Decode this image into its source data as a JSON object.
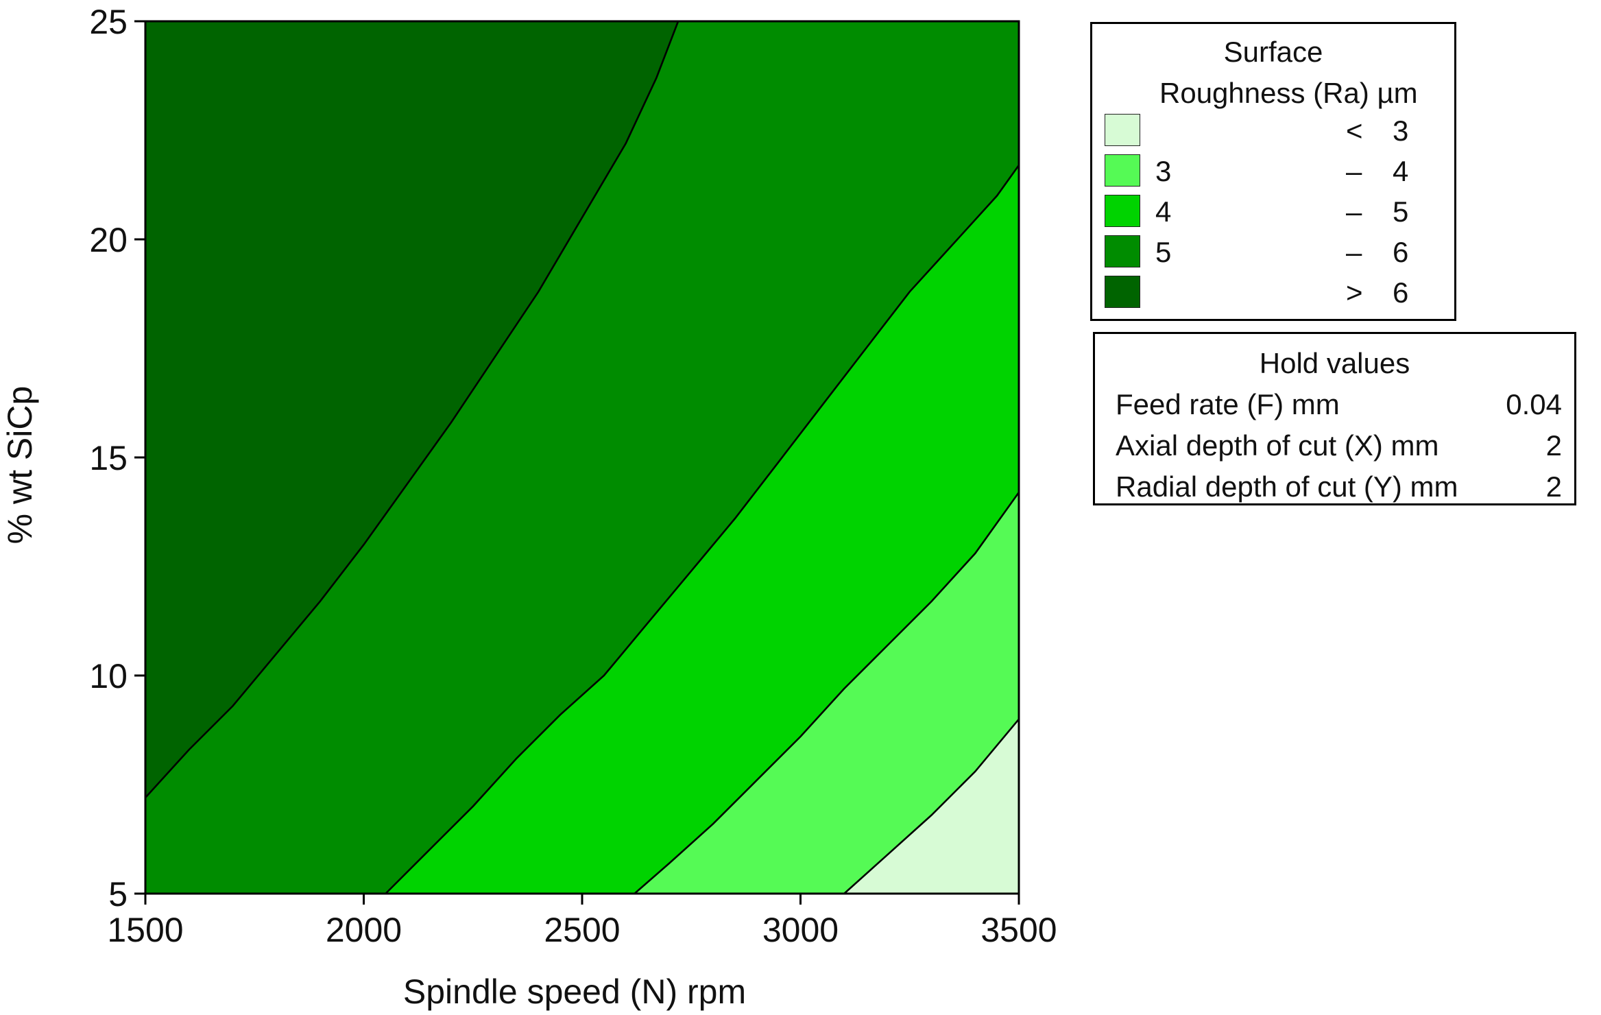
{
  "chart_data": {
    "type": "contour",
    "xlabel": "Spindle speed (N) rpm",
    "ylabel": "% wt SiCp",
    "xlim": [
      1500,
      3500
    ],
    "ylim": [
      5,
      25
    ],
    "xticks": [
      1500,
      2000,
      2500,
      3000,
      3500
    ],
    "yticks": [
      5,
      10,
      15,
      20,
      25
    ],
    "grid": false,
    "legend_placement": "right",
    "colors": {
      "lt3": "#d7fbd5",
      "3-4": "#55fa55",
      "4-5": "#00d300",
      "5-6": "#008c00",
      "gt6": "#006400"
    },
    "contours": [
      {
        "level": 3,
        "points": [
          [
            3100,
            5.0
          ],
          [
            3200,
            5.9
          ],
          [
            3300,
            6.8
          ],
          [
            3400,
            7.8
          ],
          [
            3500,
            9.0
          ]
        ]
      },
      {
        "level": 4,
        "points": [
          [
            2620,
            5.0
          ],
          [
            2700,
            5.7
          ],
          [
            2800,
            6.6
          ],
          [
            2900,
            7.6
          ],
          [
            3000,
            8.6
          ],
          [
            3100,
            9.7
          ],
          [
            3200,
            10.7
          ],
          [
            3300,
            11.7
          ],
          [
            3400,
            12.8
          ],
          [
            3500,
            14.2
          ]
        ]
      },
      {
        "level": 5,
        "points": [
          [
            2050,
            5.0
          ],
          [
            2150,
            6.0
          ],
          [
            2250,
            7.0
          ],
          [
            2350,
            8.1
          ],
          [
            2450,
            9.1
          ],
          [
            2550,
            10.0
          ],
          [
            2650,
            11.2
          ],
          [
            2750,
            12.4
          ],
          [
            2850,
            13.6
          ],
          [
            2950,
            14.9
          ],
          [
            3050,
            16.2
          ],
          [
            3150,
            17.5
          ],
          [
            3250,
            18.8
          ],
          [
            3350,
            19.9
          ],
          [
            3450,
            21.0
          ],
          [
            3500,
            21.7
          ]
        ]
      },
      {
        "level": 6,
        "points": [
          [
            1500,
            7.2
          ],
          [
            1600,
            8.3
          ],
          [
            1700,
            9.3
          ],
          [
            1800,
            10.5
          ],
          [
            1900,
            11.7
          ],
          [
            2000,
            13.0
          ],
          [
            2100,
            14.4
          ],
          [
            2200,
            15.8
          ],
          [
            2300,
            17.3
          ],
          [
            2400,
            18.8
          ],
          [
            2500,
            20.5
          ],
          [
            2600,
            22.2
          ],
          [
            2670,
            23.7
          ],
          [
            2720,
            25.0
          ]
        ]
      }
    ]
  },
  "legend": {
    "title_line1": "Surface",
    "title_line2": "Roughness (Ra) µm",
    "items": [
      {
        "left": "",
        "dash": "<",
        "right": "3"
      },
      {
        "left": "3",
        "dash": "–",
        "right": "4"
      },
      {
        "left": "4",
        "dash": "–",
        "right": "5"
      },
      {
        "left": "5",
        "dash": "–",
        "right": "6"
      },
      {
        "left": "",
        "dash": ">",
        "right": "6"
      }
    ]
  },
  "hold_values": {
    "title": "Hold values",
    "rows": [
      {
        "label": "Feed rate (F) mm",
        "value": "0.04"
      },
      {
        "label": "Axial depth of cut (X) mm",
        "value": "2"
      },
      {
        "label": "Radial depth of cut (Y) mm",
        "value": "2"
      }
    ]
  }
}
